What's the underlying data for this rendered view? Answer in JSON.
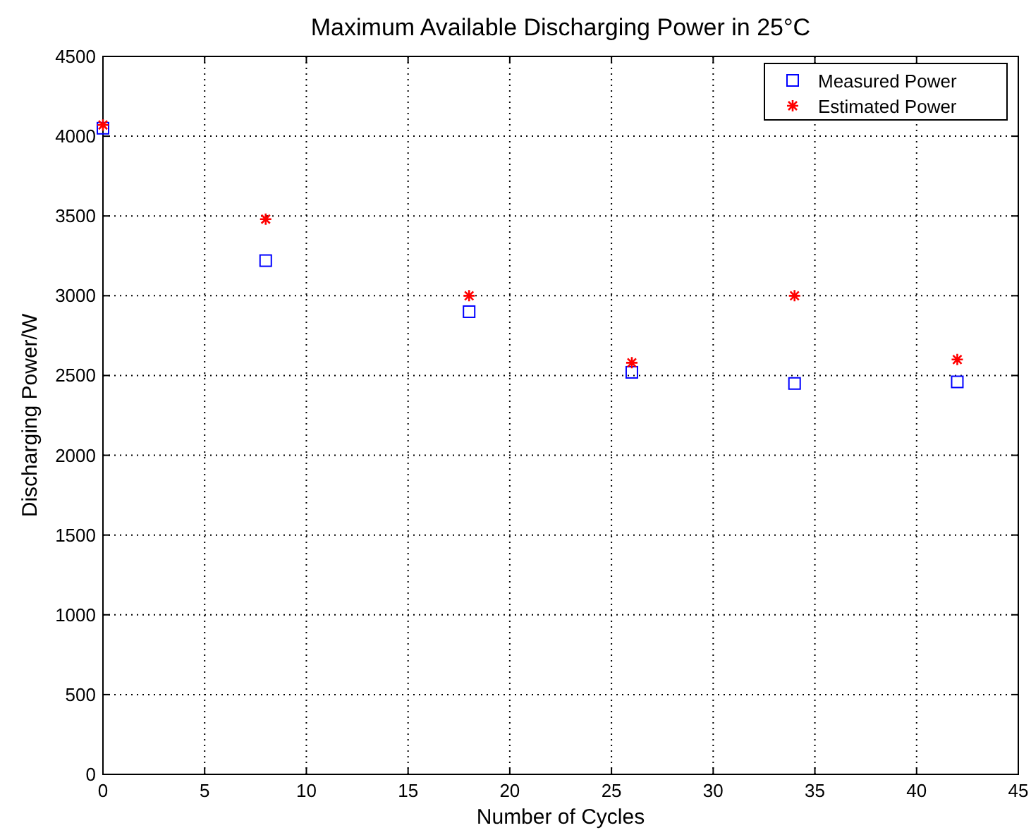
{
  "chart_data": {
    "type": "scatter",
    "title": "Maximum Available Discharging Power in 25°C",
    "xlabel": "Number of Cycles",
    "ylabel": "Discharging Power/W",
    "x": [
      0,
      8,
      18,
      26,
      34,
      42
    ],
    "series": [
      {
        "name": "Measured Power",
        "color": "#0000ff",
        "marker": "square",
        "values": [
          4050,
          3220,
          2900,
          2520,
          2450,
          2460
        ]
      },
      {
        "name": "Estimated Power",
        "color": "#ff0000",
        "marker": "cross",
        "values": [
          4070,
          3480,
          3000,
          2580,
          3000,
          2600
        ]
      }
    ],
    "xlim": [
      0,
      45
    ],
    "xticks": [
      0,
      5,
      10,
      15,
      20,
      25,
      30,
      35,
      40,
      45
    ],
    "ylim": [
      0,
      4500
    ],
    "yticks": [
      0,
      500,
      1000,
      1500,
      2000,
      2500,
      3000,
      3500,
      4000,
      4500
    ],
    "grid": true,
    "legend": "top right"
  }
}
